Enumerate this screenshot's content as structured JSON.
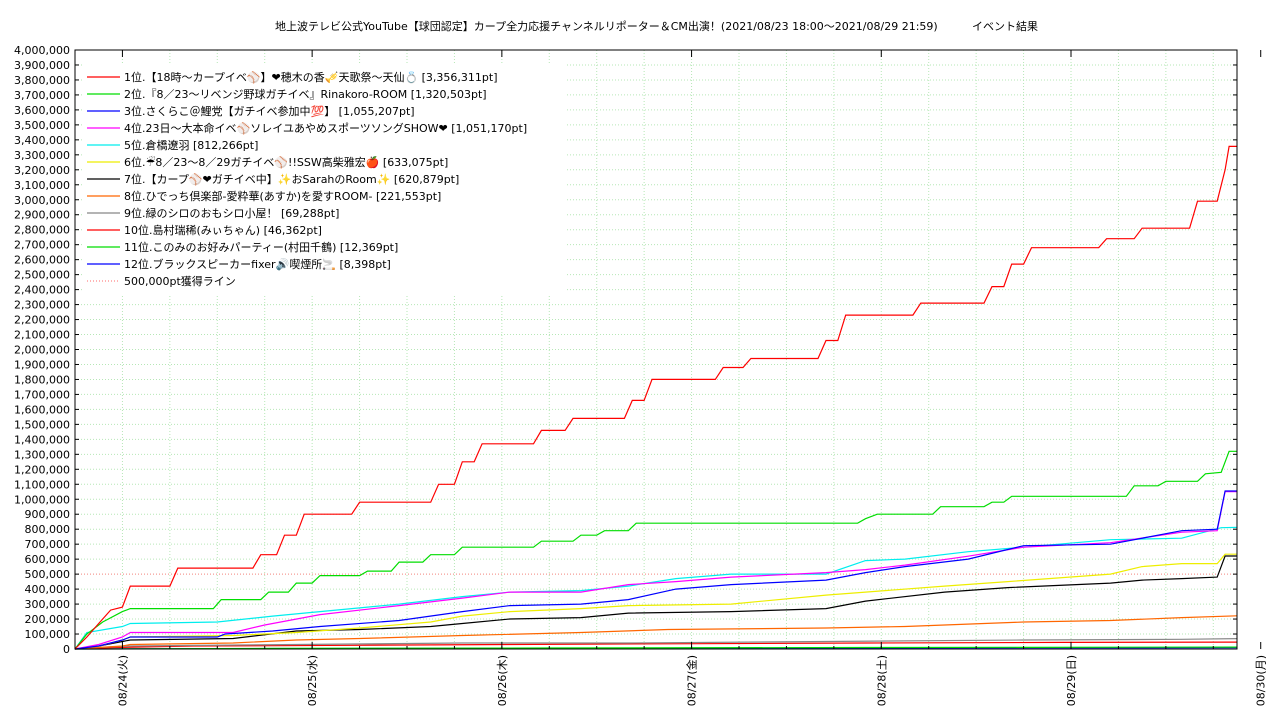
{
  "chart_data": {
    "type": "line",
    "title": "地上波テレビ公式YouTube【球団認定】カープ全力応援チャンネルリポーター＆CM出演！(2021/08/23 18:00〜2021/08/29 21:59)",
    "subtitle": "イベント結果",
    "xlabel": "",
    "ylabel": "",
    "x_range": [
      "2021-08-23 18:00",
      "2021-08-30 00:00"
    ],
    "ylim": [
      0,
      4000000
    ],
    "y_step": 100000,
    "y_ticks": [
      "0",
      "100,000",
      "200,000",
      "300,000",
      "400,000",
      "500,000",
      "600,000",
      "700,000",
      "800,000",
      "900,000",
      "1,000,000",
      "1,100,000",
      "1,200,000",
      "1,300,000",
      "1,400,000",
      "1,500,000",
      "1,600,000",
      "1,700,000",
      "1,800,000",
      "1,900,000",
      "2,000,000",
      "2,100,000",
      "2,200,000",
      "2,300,000",
      "2,400,000",
      "2,500,000",
      "2,600,000",
      "2,700,000",
      "2,800,000",
      "2,900,000",
      "3,000,000",
      "3,100,000",
      "3,200,000",
      "3,300,000",
      "3,400,000",
      "3,500,000",
      "3,600,000",
      "3,700,000",
      "3,800,000",
      "3,900,000",
      "4,000,000"
    ],
    "x_ticks": [
      "08/24(火)",
      "08/25(水)",
      "08/26(木)",
      "08/27(金)",
      "08/28(土)",
      "08/29(日)",
      "08/30(月)"
    ],
    "grid": true,
    "legend_position": "top-left",
    "threshold": {
      "name": "500,000pt獲得ライン",
      "value": 500000,
      "color": "#ff8888"
    },
    "series": [
      {
        "name": "1位.【18時〜カープイベ⚾】❤穂木の香🎺天歌祭〜天仙💍 [3,356,311pt]",
        "color": "#ff0000",
        "points": [
          [
            0,
            0
          ],
          [
            3,
            80000
          ],
          [
            6,
            170000
          ],
          [
            9,
            260000
          ],
          [
            12,
            280000
          ],
          [
            14,
            420000
          ],
          [
            24,
            420000
          ],
          [
            26,
            540000
          ],
          [
            45,
            540000
          ],
          [
            47,
            630000
          ],
          [
            51,
            630000
          ],
          [
            53,
            760000
          ],
          [
            56,
            760000
          ],
          [
            58,
            900000
          ],
          [
            70,
            900000
          ],
          [
            72,
            980000
          ],
          [
            90,
            980000
          ],
          [
            92,
            1100000
          ],
          [
            96,
            1100000
          ],
          [
            98,
            1250000
          ],
          [
            101,
            1250000
          ],
          [
            103,
            1370000
          ],
          [
            116,
            1370000
          ],
          [
            118,
            1460000
          ],
          [
            124,
            1460000
          ],
          [
            126,
            1540000
          ],
          [
            139,
            1540000
          ],
          [
            141,
            1660000
          ],
          [
            144,
            1660000
          ],
          [
            146,
            1800000
          ],
          [
            162,
            1800000
          ],
          [
            164,
            1880000
          ],
          [
            169,
            1880000
          ],
          [
            171,
            1940000
          ],
          [
            188,
            1940000
          ],
          [
            190,
            2060000
          ],
          [
            193,
            2060000
          ],
          [
            195,
            2230000
          ],
          [
            212,
            2230000
          ],
          [
            214,
            2310000
          ],
          [
            230,
            2310000
          ],
          [
            232,
            2420000
          ],
          [
            235,
            2420000
          ],
          [
            237,
            2570000
          ],
          [
            240,
            2570000
          ],
          [
            242,
            2680000
          ],
          [
            259,
            2680000
          ],
          [
            261,
            2740000
          ],
          [
            268,
            2740000
          ],
          [
            270,
            2810000
          ],
          [
            282,
            2810000
          ],
          [
            284,
            2990000
          ],
          [
            289,
            2990000
          ],
          [
            291,
            3200000
          ],
          [
            292,
            3356311
          ],
          [
            294,
            3356311
          ]
        ]
      },
      {
        "name": "2位.『8／23〜リベンジ野球ガチイベ』Rinakoro-ROOM [1,320,503pt]",
        "color": "#00dd00",
        "points": [
          [
            0,
            0
          ],
          [
            3,
            100000
          ],
          [
            7,
            180000
          ],
          [
            12,
            250000
          ],
          [
            14,
            270000
          ],
          [
            35,
            270000
          ],
          [
            37,
            330000
          ],
          [
            47,
            330000
          ],
          [
            49,
            380000
          ],
          [
            54,
            380000
          ],
          [
            56,
            440000
          ],
          [
            60,
            440000
          ],
          [
            62,
            490000
          ],
          [
            72,
            490000
          ],
          [
            74,
            520000
          ],
          [
            80,
            520000
          ],
          [
            82,
            580000
          ],
          [
            88,
            580000
          ],
          [
            90,
            630000
          ],
          [
            96,
            630000
          ],
          [
            98,
            680000
          ],
          [
            116,
            680000
          ],
          [
            118,
            720000
          ],
          [
            126,
            720000
          ],
          [
            128,
            760000
          ],
          [
            132,
            760000
          ],
          [
            134,
            790000
          ],
          [
            140,
            790000
          ],
          [
            142,
            840000
          ],
          [
            198,
            840000
          ],
          [
            200,
            870000
          ],
          [
            203,
            900000
          ],
          [
            217,
            900000
          ],
          [
            219,
            950000
          ],
          [
            230,
            950000
          ],
          [
            232,
            980000
          ],
          [
            235,
            980000
          ],
          [
            237,
            1020000
          ],
          [
            266,
            1020000
          ],
          [
            268,
            1090000
          ],
          [
            274,
            1090000
          ],
          [
            276,
            1120000
          ],
          [
            284,
            1120000
          ],
          [
            286,
            1170000
          ],
          [
            290,
            1180000
          ],
          [
            292,
            1320503
          ],
          [
            294,
            1320503
          ]
        ]
      },
      {
        "name": "3位.さくらこ＠鯉党【ガチイベ参加中💯】 [1,055,207pt]",
        "color": "#0000ff",
        "points": [
          [
            0,
            0
          ],
          [
            6,
            20000
          ],
          [
            12,
            60000
          ],
          [
            14,
            80000
          ],
          [
            36,
            80000
          ],
          [
            38,
            100000
          ],
          [
            50,
            120000
          ],
          [
            62,
            150000
          ],
          [
            82,
            190000
          ],
          [
            98,
            250000
          ],
          [
            110,
            290000
          ],
          [
            128,
            300000
          ],
          [
            140,
            330000
          ],
          [
            152,
            400000
          ],
          [
            166,
            430000
          ],
          [
            190,
            460000
          ],
          [
            200,
            510000
          ],
          [
            210,
            550000
          ],
          [
            226,
            600000
          ],
          [
            240,
            690000
          ],
          [
            262,
            700000
          ],
          [
            280,
            790000
          ],
          [
            289,
            800000
          ],
          [
            291,
            1055207
          ],
          [
            294,
            1055207
          ]
        ]
      },
      {
        "name": "4位.23日〜大本命イベ⚾ソレイユあやめスポーツソングSHOW❤ [1,051,170pt]",
        "color": "#ff00ff",
        "points": [
          [
            0,
            0
          ],
          [
            6,
            30000
          ],
          [
            12,
            80000
          ],
          [
            14,
            110000
          ],
          [
            40,
            110000
          ],
          [
            48,
            160000
          ],
          [
            62,
            230000
          ],
          [
            82,
            290000
          ],
          [
            98,
            340000
          ],
          [
            110,
            380000
          ],
          [
            128,
            380000
          ],
          [
            140,
            430000
          ],
          [
            152,
            450000
          ],
          [
            166,
            480000
          ],
          [
            190,
            510000
          ],
          [
            200,
            530000
          ],
          [
            210,
            560000
          ],
          [
            226,
            620000
          ],
          [
            240,
            680000
          ],
          [
            262,
            710000
          ],
          [
            280,
            780000
          ],
          [
            289,
            790000
          ],
          [
            291,
            1051170
          ],
          [
            294,
            1051170
          ]
        ]
      },
      {
        "name": "5位.倉橋遼羽 [812,266pt]",
        "color": "#00eeee",
        "points": [
          [
            0,
            0
          ],
          [
            3,
            110000
          ],
          [
            12,
            150000
          ],
          [
            14,
            170000
          ],
          [
            36,
            180000
          ],
          [
            50,
            220000
          ],
          [
            62,
            250000
          ],
          [
            82,
            300000
          ],
          [
            98,
            350000
          ],
          [
            110,
            380000
          ],
          [
            128,
            390000
          ],
          [
            140,
            420000
          ],
          [
            152,
            470000
          ],
          [
            166,
            500000
          ],
          [
            190,
            500000
          ],
          [
            200,
            590000
          ],
          [
            210,
            600000
          ],
          [
            226,
            650000
          ],
          [
            240,
            680000
          ],
          [
            262,
            730000
          ],
          [
            280,
            740000
          ],
          [
            290,
            810000
          ],
          [
            294,
            812266
          ]
        ]
      },
      {
        "name": "6位.☔8／23〜8／29ガチイベ⚾!!SSW高柴雅宏🍎 [633,075pt]",
        "color": "#eeee00",
        "points": [
          [
            0,
            0
          ],
          [
            6,
            20000
          ],
          [
            12,
            60000
          ],
          [
            14,
            80000
          ],
          [
            40,
            90000
          ],
          [
            56,
            110000
          ],
          [
            72,
            140000
          ],
          [
            90,
            180000
          ],
          [
            98,
            220000
          ],
          [
            110,
            250000
          ],
          [
            128,
            270000
          ],
          [
            140,
            290000
          ],
          [
            166,
            300000
          ],
          [
            190,
            360000
          ],
          [
            200,
            380000
          ],
          [
            220,
            420000
          ],
          [
            236,
            450000
          ],
          [
            262,
            500000
          ],
          [
            270,
            550000
          ],
          [
            280,
            570000
          ],
          [
            289,
            570000
          ],
          [
            291,
            633075
          ],
          [
            294,
            633075
          ]
        ]
      },
      {
        "name": "7位.【カープ⚾❤ガチイベ中】✨おSarahのRoom✨ [620,879pt]",
        "color": "#000000",
        "points": [
          [
            0,
            0
          ],
          [
            6,
            20000
          ],
          [
            12,
            50000
          ],
          [
            14,
            60000
          ],
          [
            40,
            70000
          ],
          [
            56,
            120000
          ],
          [
            72,
            130000
          ],
          [
            90,
            150000
          ],
          [
            98,
            170000
          ],
          [
            110,
            200000
          ],
          [
            128,
            210000
          ],
          [
            140,
            240000
          ],
          [
            166,
            250000
          ],
          [
            190,
            270000
          ],
          [
            200,
            320000
          ],
          [
            220,
            380000
          ],
          [
            236,
            410000
          ],
          [
            262,
            440000
          ],
          [
            270,
            460000
          ],
          [
            280,
            470000
          ],
          [
            289,
            480000
          ],
          [
            291,
            620879
          ],
          [
            294,
            620879
          ]
        ]
      },
      {
        "name": "8位.ひでっち倶楽部-愛粋華(あすか)を愛すROOM- [221,553pt]",
        "color": "#ff6600",
        "points": [
          [
            0,
            0
          ],
          [
            6,
            10000
          ],
          [
            12,
            20000
          ],
          [
            14,
            30000
          ],
          [
            40,
            40000
          ],
          [
            56,
            60000
          ],
          [
            72,
            70000
          ],
          [
            98,
            90000
          ],
          [
            128,
            110000
          ],
          [
            150,
            130000
          ],
          [
            190,
            140000
          ],
          [
            210,
            150000
          ],
          [
            240,
            180000
          ],
          [
            262,
            190000
          ],
          [
            280,
            210000
          ],
          [
            294,
            221553
          ]
        ]
      },
      {
        "name": "9位.緑のシロのおもシロ小屋！ [69,288pt]",
        "color": "#888888",
        "points": [
          [
            0,
            0
          ],
          [
            6,
            10000
          ],
          [
            14,
            20000
          ],
          [
            56,
            30000
          ],
          [
            98,
            40000
          ],
          [
            140,
            40000
          ],
          [
            190,
            50000
          ],
          [
            240,
            60000
          ],
          [
            280,
            65000
          ],
          [
            294,
            69288
          ]
        ]
      },
      {
        "name": "10位.島村瑞稀(みぃちゃん) [46,362pt]",
        "color": "#ff0000",
        "points": [
          [
            0,
            0
          ],
          [
            10,
            10000
          ],
          [
            30,
            20000
          ],
          [
            70,
            25000
          ],
          [
            110,
            30000
          ],
          [
            150,
            35000
          ],
          [
            200,
            40000
          ],
          [
            250,
            44000
          ],
          [
            294,
            46362
          ]
        ]
      },
      {
        "name": "11位.このみのお好みパーティー(村田千鶴) [12,369pt]",
        "color": "#00dd00",
        "points": [
          [
            0,
            0
          ],
          [
            50,
            4000
          ],
          [
            120,
            7000
          ],
          [
            200,
            10000
          ],
          [
            294,
            12369
          ]
        ]
      },
      {
        "name": "12位.ブラックスピーカーfixer🔊喫煙所🚬 [8,398pt]",
        "color": "#0000ff",
        "points": [
          [
            0,
            0
          ],
          [
            60,
            3000
          ],
          [
            150,
            6000
          ],
          [
            250,
            8000
          ],
          [
            294,
            8398
          ]
        ]
      }
    ]
  }
}
